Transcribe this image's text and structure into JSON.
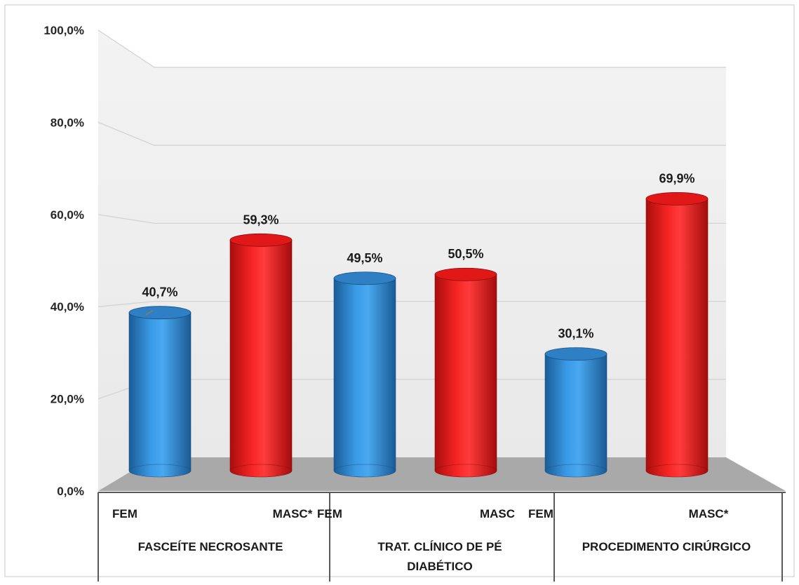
{
  "chart_data": {
    "type": "bar",
    "title": "",
    "xlabel": "",
    "ylabel": "",
    "ylim": [
      0,
      100
    ],
    "yticks": [
      "0,0%",
      "20,0%",
      "40,0%",
      "60,0%",
      "80,0%",
      "100,0%"
    ],
    "grid": true,
    "legend": "none",
    "groups": [
      {
        "name": "FASCEÍTE NECROSANTE",
        "name_lines": [
          "FASCEÍTE NECROSANTE"
        ]
      },
      {
        "name": "TRAT. CLÍNICO DE PÉ DIABÉTICO",
        "name_lines": [
          "TRAT. CLÍNICO DE PÉ",
          "DIABÉTICO"
        ]
      },
      {
        "name": "PROCEDIMENTO CIRÚRGICO",
        "name_lines": [
          "PROCEDIMENTO CIRÚRGICO"
        ]
      }
    ],
    "bars": [
      {
        "group": 0,
        "category": "FEM",
        "value": 40.7,
        "label": "40,7%",
        "color": "#2e86d6"
      },
      {
        "group": 0,
        "category": "MASC*",
        "value": 59.3,
        "label": "59,3%",
        "color": "#f01c1c"
      },
      {
        "group": 1,
        "category": "FEM",
        "value": 49.5,
        "label": "49,5%",
        "color": "#2e86d6"
      },
      {
        "group": 1,
        "category": "MASC",
        "value": 50.5,
        "label": "50,5%",
        "color": "#f01c1c"
      },
      {
        "group": 2,
        "category": "FEM",
        "value": 30.1,
        "label": "30,1%",
        "color": "#2e86d6"
      },
      {
        "group": 2,
        "category": "MASC*",
        "value": 69.9,
        "label": "69,9%",
        "color": "#f01c1c"
      }
    ],
    "colors": {
      "fem": "#2e86d6",
      "masc": "#f01c1c",
      "wall": "#eeeeee",
      "floor": "#a9a9a9"
    }
  }
}
